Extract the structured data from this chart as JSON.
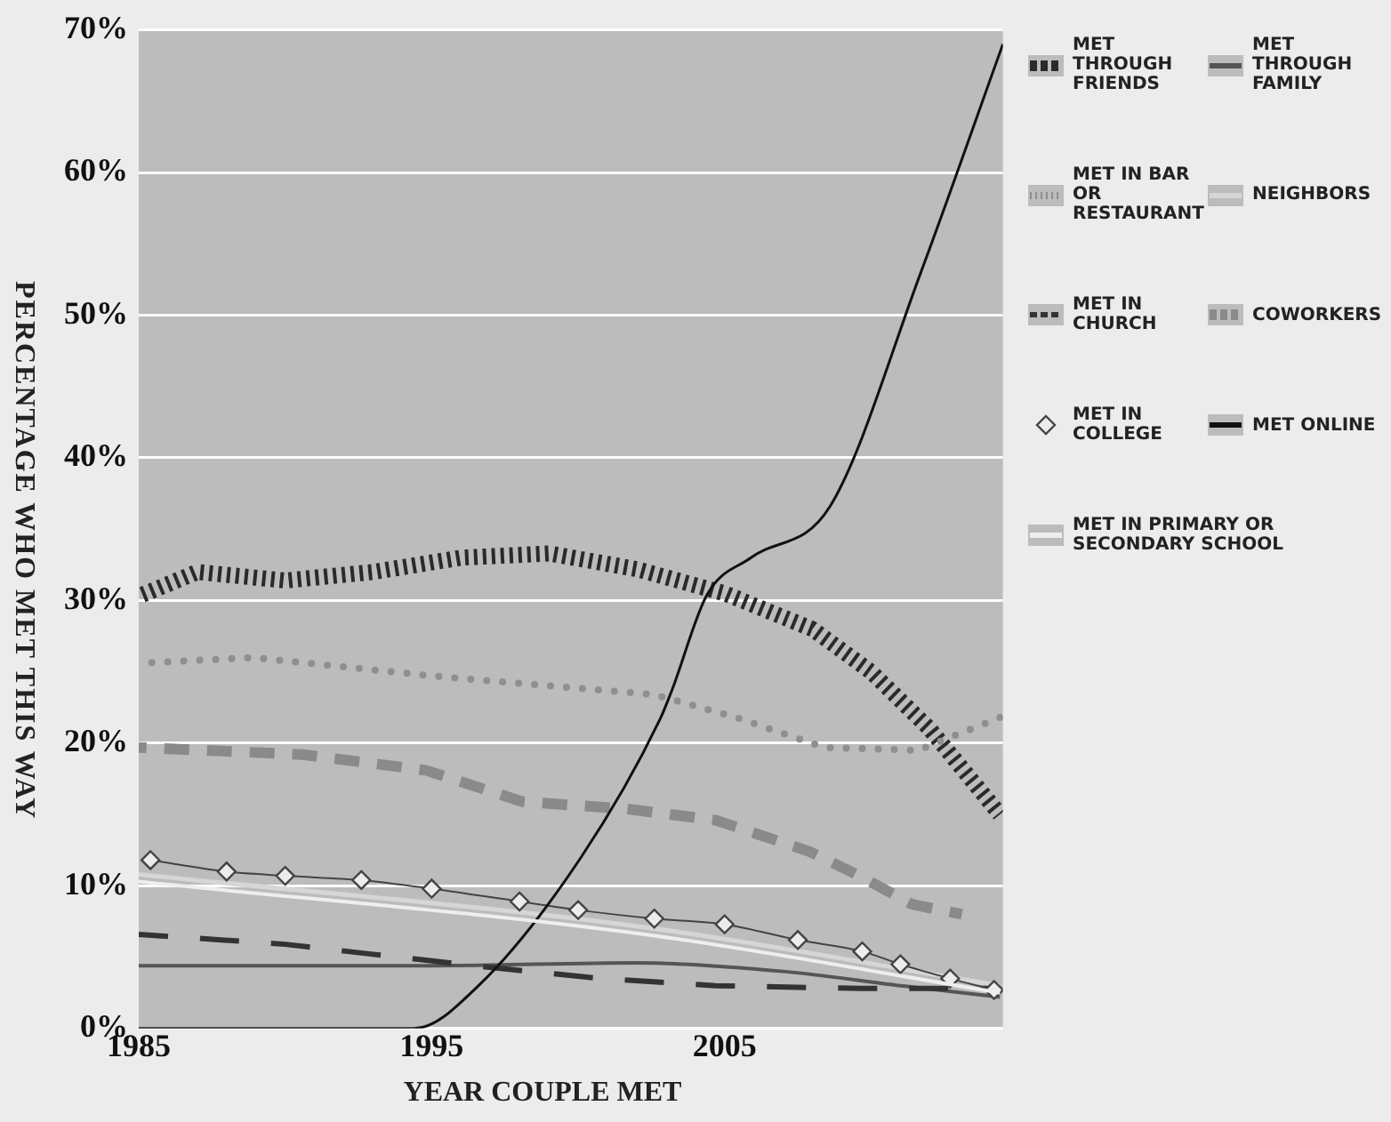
{
  "chart_data": {
    "type": "line",
    "xlabel": "YEAR COUPLE MET",
    "ylabel": "PERCENTAGE WHO MET THIS WAY",
    "xlim": [
      1985,
      2014.5
    ],
    "xticks": [
      1985,
      1995,
      2005
    ],
    "ylim": [
      0,
      70
    ],
    "yticks": [
      {
        "value": 0,
        "label": "0%"
      },
      {
        "value": 10,
        "label": "10%"
      },
      {
        "value": 20,
        "label": "20%"
      },
      {
        "value": 30,
        "label": "30%"
      },
      {
        "value": 40,
        "label": "40%"
      },
      {
        "value": 50,
        "label": "50%"
      },
      {
        "value": 60,
        "label": "60%"
      },
      {
        "value": 70,
        "label": "70%"
      }
    ],
    "grid": "y",
    "legend": "right",
    "series": [
      {
        "name": "MET THROUGH FRIENDS",
        "color": "#2a2a2a",
        "line_style": "dashed",
        "x": [
          1985,
          1987,
          1990,
          1993,
          1996,
          1999,
          2002,
          2005,
          2008,
          2010,
          2012,
          2014.4
        ],
        "values": [
          30.3,
          32,
          31.4,
          32,
          33,
          33.3,
          32.2,
          30.5,
          28,
          25,
          21,
          15
        ]
      },
      {
        "name": "MET THROUGH FAMILY",
        "color": "#555555",
        "line_style": "solid",
        "x": [
          1985,
          1995,
          2002,
          2007,
          2011,
          2014.4
        ],
        "values": [
          4.4,
          4.4,
          4.6,
          4,
          3,
          2.2
        ]
      },
      {
        "name": "MET IN BAR OR RESTAURANT",
        "color": "#8f8f8f",
        "line_style": "dotted",
        "x": [
          1985,
          1988.9,
          1995.1,
          2002.6,
          2005.4,
          2008.4,
          2011.6,
          2014.4
        ],
        "values": [
          25.6,
          26,
          24.7,
          23.4,
          21.8,
          19.7,
          19.5,
          21.8
        ]
      },
      {
        "name": "NEIGHBORS",
        "color": "#d6d6d6",
        "line_style": "solid",
        "x": [
          1985,
          2002.6,
          2014.4
        ],
        "values": [
          10.8,
          7,
          3
        ]
      },
      {
        "name": "MET IN CHURCH",
        "color": "#333333",
        "line_style": "dashed",
        "x": [
          1985,
          1990,
          1993,
          1996.9,
          2000.8,
          2004.7,
          2009.7,
          2014.4
        ],
        "values": [
          6.6,
          5.9,
          5.2,
          4.3,
          3.5,
          3,
          2.8,
          2.8
        ]
      },
      {
        "name": "COWORKERS",
        "color": "#8a8a8a",
        "line_style": "dashed",
        "x": [
          1985,
          1990.6,
          1994.8,
          1998.1,
          2001.6,
          2004.7,
          2007.9,
          2009.7,
          2011.4,
          2013.1
        ],
        "values": [
          19.7,
          19.2,
          18.1,
          15.9,
          15.4,
          14.6,
          12.4,
          10.6,
          8.7,
          8
        ]
      },
      {
        "name": "MET IN COLLEGE",
        "color": "#444444",
        "line_style": "solid",
        "marker": "diamond",
        "x": [
          1985.4,
          1988,
          1990,
          1992.6,
          1995,
          1998,
          2000,
          2002.6,
          2005,
          2007.5,
          2009.7,
          2011,
          2012.7,
          2014.2
        ],
        "values": [
          11.8,
          11,
          10.7,
          10.4,
          9.8,
          8.9,
          8.3,
          7.7,
          7.3,
          6.2,
          5.4,
          4.5,
          3.5,
          2.7
        ]
      },
      {
        "name": "MET ONLINE",
        "color": "#111111",
        "line_style": "solid",
        "x": [
          1985,
          1994.4,
          1996.6,
          2000.1,
          2002.8,
          2003.2,
          2004.4,
          2005.9,
          2008.6,
          2011.7,
          2014.5
        ],
        "values": [
          0,
          0,
          3,
          12,
          21.7,
          23.7,
          30.4,
          33,
          36.6,
          53,
          69
        ]
      },
      {
        "name": "MET IN PRIMARY OR SECONDARY SCHOOL",
        "color": "#eeeeee",
        "line_style": "solid",
        "x": [
          1985,
          2002.6,
          2014.4
        ],
        "values": [
          10.3,
          6.5,
          2.5
        ]
      }
    ]
  }
}
